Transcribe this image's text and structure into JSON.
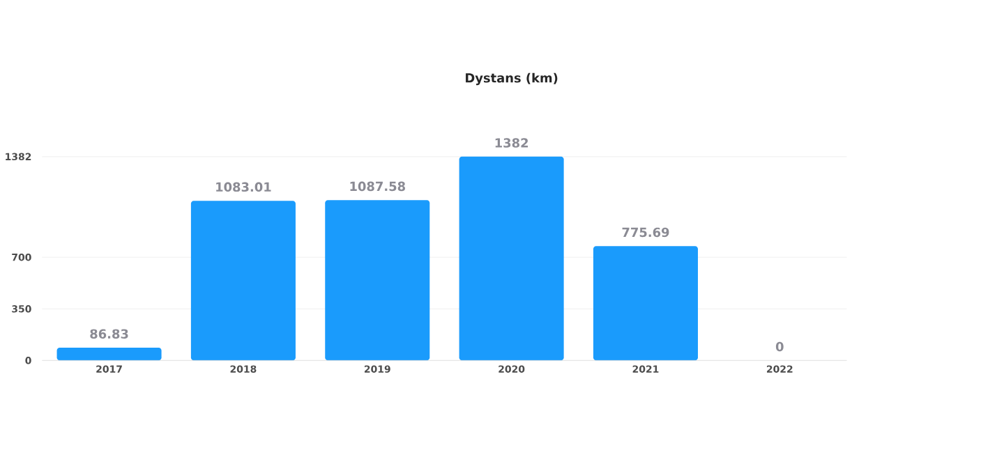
{
  "chart_data": {
    "type": "bar",
    "title": "Dystans (km)",
    "categories": [
      "2017",
      "2018",
      "2019",
      "2020",
      "2021",
      "2022"
    ],
    "values": [
      86.83,
      1083.01,
      1087.58,
      1382,
      775.69,
      0
    ],
    "color": "#1a9bfc",
    "ylim": [
      0,
      1382
    ],
    "yticks": [
      0,
      350,
      700,
      1382
    ],
    "grid": "y",
    "data_labels": true
  }
}
